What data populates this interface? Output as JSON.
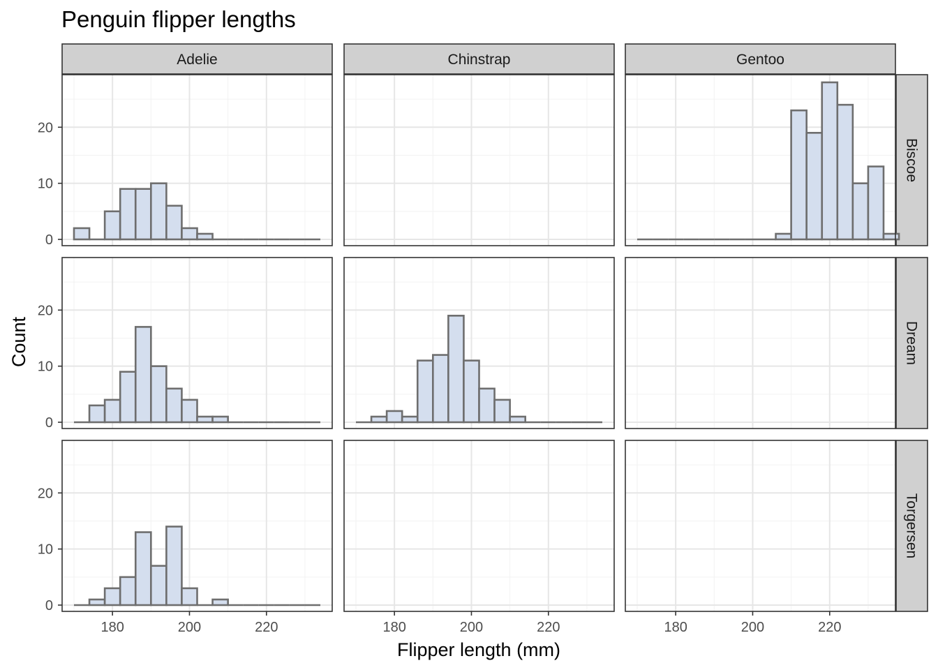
{
  "chart_data": {
    "type": "bar",
    "title": "Penguin flipper lengths",
    "xlabel": "Flipper length (mm)",
    "ylabel": "Count",
    "columns": [
      "Adelie",
      "Chinstrap",
      "Gentoo"
    ],
    "rows": [
      "Biscoe",
      "Dream",
      "Torgersen"
    ],
    "xlim": [
      170,
      234
    ],
    "ylim": [
      0,
      28
    ],
    "x_ticks": [
      180,
      200,
      220
    ],
    "y_ticks": [
      0,
      10,
      20
    ],
    "grid": true,
    "bin_width": 4,
    "bin_starts": [
      170,
      174,
      178,
      182,
      186,
      190,
      194,
      198,
      202,
      206,
      210,
      214,
      218,
      222,
      226,
      230
    ],
    "colors": {
      "bar_fill": "#d4deee",
      "bar_stroke": "#6e6e6e",
      "strip_fill": "#d0d0d0",
      "panel_border": "#333333",
      "grid_major": "#e6e6e6",
      "grid_minor": "#f2f2f2"
    },
    "panels": [
      {
        "column": "Adelie",
        "row": "Biscoe",
        "counts": [
          2,
          0,
          5,
          9,
          9,
          10,
          6,
          2,
          1,
          0,
          0,
          0,
          0,
          0,
          0,
          0
        ]
      },
      {
        "column": "Chinstrap",
        "row": "Biscoe",
        "counts": []
      },
      {
        "column": "Gentoo",
        "row": "Biscoe",
        "counts": [
          0,
          0,
          0,
          0,
          0,
          0,
          0,
          0,
          0,
          1,
          23,
          19,
          28,
          24,
          10,
          13,
          1
        ],
        "bin_starts": [
          170,
          174,
          178,
          182,
          186,
          190,
          194,
          198,
          202,
          206,
          210,
          214,
          218,
          222,
          226,
          230,
          234
        ]
      },
      {
        "column": "Adelie",
        "row": "Dream",
        "counts": [
          0,
          3,
          4,
          9,
          17,
          10,
          6,
          4,
          1,
          1,
          0,
          0,
          0,
          0,
          0,
          0
        ]
      },
      {
        "column": "Chinstrap",
        "row": "Dream",
        "counts": [
          0,
          1,
          2,
          1,
          11,
          12,
          19,
          11,
          6,
          4,
          1,
          0,
          0,
          0,
          0,
          0
        ]
      },
      {
        "column": "Gentoo",
        "row": "Dream",
        "counts": []
      },
      {
        "column": "Adelie",
        "row": "Torgersen",
        "counts": [
          0,
          1,
          3,
          5,
          13,
          7,
          14,
          3,
          0,
          1,
          0,
          0,
          0,
          0,
          0,
          0
        ]
      },
      {
        "column": "Chinstrap",
        "row": "Torgersen",
        "counts": []
      },
      {
        "column": "Gentoo",
        "row": "Torgersen",
        "counts": []
      }
    ]
  }
}
